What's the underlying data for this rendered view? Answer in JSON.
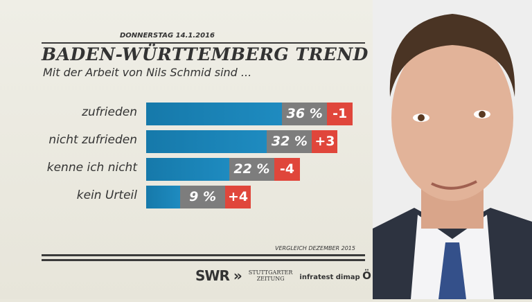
{
  "date": "DONNERSTAG  14.1.2016",
  "chart_data": {
    "type": "bar",
    "title": "BADEN-WÜRTTEMBERG TREND",
    "subtitle": "Mit der Arbeit von Nils Schmid sind ...",
    "categories": [
      "zufrieden",
      "nicht zufrieden",
      "kenne ich nicht",
      "kein Urteil"
    ],
    "values": [
      36,
      32,
      22,
      9
    ],
    "value_labels": [
      "36 %",
      "32 %",
      "22 %",
      "9 %"
    ],
    "changes": [
      "-1",
      "+3",
      "-4",
      "+4"
    ],
    "unit": "%",
    "note": "VERGLEICH DEZEMBER 2015",
    "colors": {
      "bar": "#1a82b6",
      "value_box": "#7d7d7d",
      "change_box": "#e0463b"
    }
  },
  "logos": {
    "swr": "SWR",
    "stz_line1": "STUTTGARTER",
    "stz_line2": "ZEITUNG",
    "infratest": "infratest dimap"
  }
}
